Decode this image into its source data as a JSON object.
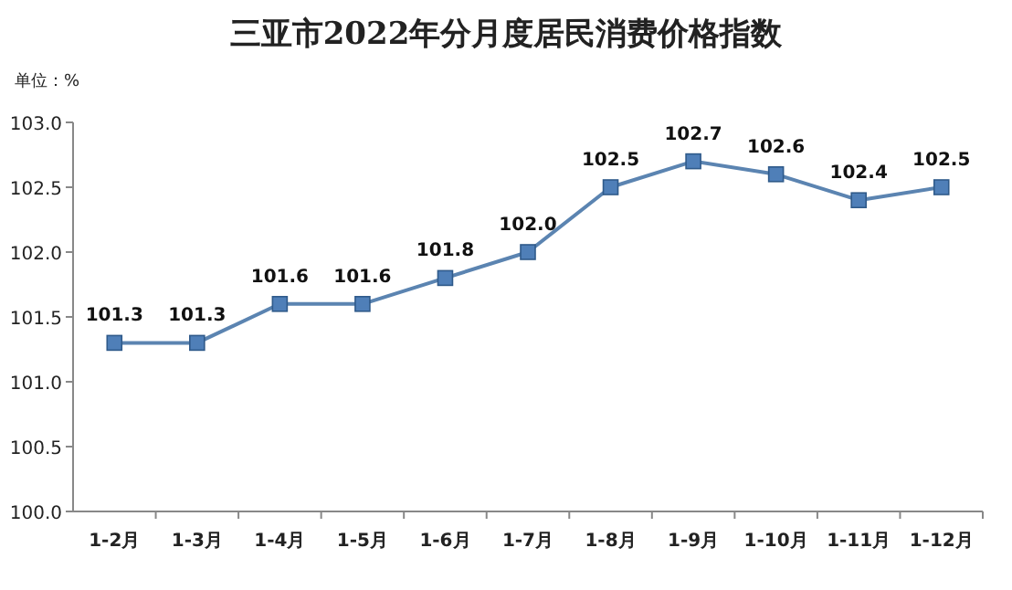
{
  "chart_data": {
    "type": "line",
    "title": "三亚市2022年分月度居民消费价格指数",
    "annotations": [
      "单位：%"
    ],
    "categories": [
      "1-2月",
      "1-3月",
      "1-4月",
      "1-5月",
      "1-6月",
      "1-7月",
      "1-8月",
      "1-9月",
      "1-10月",
      "1-11月",
      "1-12月"
    ],
    "series": [
      {
        "color": "#5b84b1",
        "values": [
          101.3,
          101.3,
          101.6,
          101.6,
          101.8,
          102.0,
          102.5,
          102.7,
          102.6,
          102.4,
          102.5
        ],
        "value_labels": [
          "101.3",
          "101.3",
          "101.6",
          "101.6",
          "101.8",
          "102.0",
          "102.5",
          "102.7",
          "102.6",
          "102.4",
          "102.5"
        ]
      }
    ],
    "ylim": [
      100,
      103
    ],
    "yticks": [
      {
        "value": 100,
        "label": "100.0"
      },
      {
        "value": 100.5,
        "label": "100.5"
      },
      {
        "value": 101,
        "label": "101.0"
      },
      {
        "value": 101.5,
        "label": "101.5"
      },
      {
        "value": 102,
        "label": "102.0"
      },
      {
        "value": 102.5,
        "label": "102.5"
      },
      {
        "value": 103,
        "label": "103.0"
      }
    ],
    "marker": "square",
    "line_style": "solid",
    "grid": false
  }
}
